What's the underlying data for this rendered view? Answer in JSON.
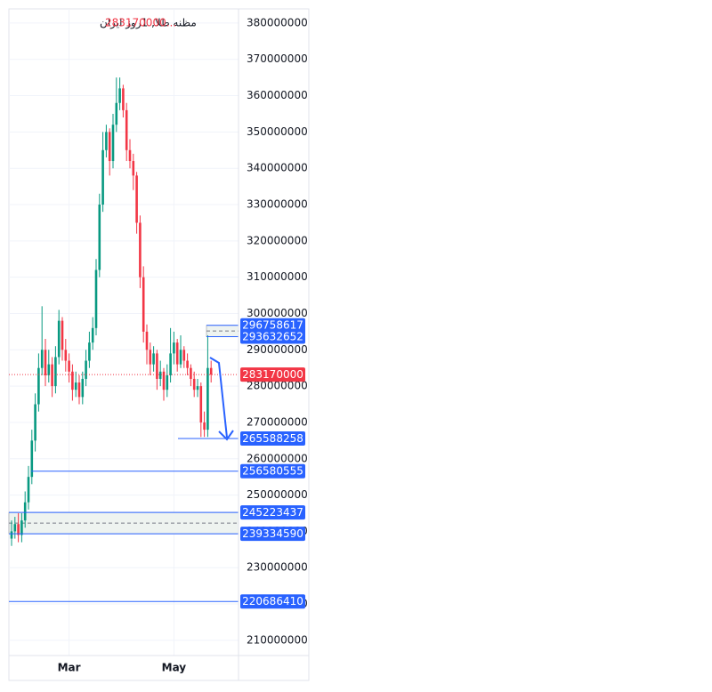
{
  "chart_data": {
    "type": "candlestick",
    "title": "مظنه طلا, 1روز ایران",
    "last_price_label": "283170000...",
    "categories": [
      null,
      null,
      null,
      null,
      null,
      null,
      null,
      null,
      null,
      null,
      null,
      null,
      null,
      null,
      null,
      null,
      null,
      "Mar",
      null,
      null,
      null,
      null,
      null,
      null,
      null,
      null,
      null,
      null,
      null,
      null,
      null,
      null,
      null,
      null,
      null,
      null,
      null,
      null,
      null,
      null,
      null,
      null,
      null,
      null,
      null,
      null,
      null,
      null,
      "May",
      null,
      null,
      null,
      null,
      null,
      null,
      null,
      null,
      null,
      null,
      null
    ],
    "open": [
      238000000,
      240000000,
      242000000,
      239000000,
      243000000,
      248000000,
      255000000,
      265000000,
      275000000,
      285000000,
      290000000,
      283000000,
      286000000,
      280000000,
      288000000,
      298000000,
      290000000,
      287000000,
      284000000,
      279000000,
      281000000,
      277000000,
      282000000,
      287000000,
      292000000,
      296000000,
      312000000,
      330000000,
      345000000,
      350000000,
      342000000,
      352000000,
      358000000,
      362000000,
      356000000,
      345000000,
      342000000,
      338000000,
      325000000,
      310000000,
      295000000,
      290000000,
      286000000,
      289000000,
      282000000,
      284000000,
      279000000,
      283000000,
      289000000,
      292000000,
      286000000,
      290000000,
      287000000,
      285000000,
      282000000,
      279000000,
      280000000,
      270000000,
      268000000,
      285000000
    ],
    "high": [
      243000000,
      244000000,
      245000000,
      245000000,
      251000000,
      258000000,
      268000000,
      278000000,
      289000000,
      302000000,
      293000000,
      290000000,
      288000000,
      291000000,
      301000000,
      299000000,
      293000000,
      289000000,
      286000000,
      284000000,
      283000000,
      284000000,
      290000000,
      295000000,
      299000000,
      315000000,
      333000000,
      350000000,
      352000000,
      351000000,
      355000000,
      365000000,
      365000000,
      363000000,
      358000000,
      348000000,
      344000000,
      339000000,
      327000000,
      313000000,
      297000000,
      292000000,
      291000000,
      290000000,
      287000000,
      285000000,
      286000000,
      296000000,
      295000000,
      293000000,
      294000000,
      291000000,
      289000000,
      286000000,
      284000000,
      282000000,
      281000000,
      273000000,
      294000000,
      287000000
    ],
    "low": [
      236000000,
      238000000,
      237000000,
      237000000,
      241000000,
      246000000,
      253000000,
      262000000,
      273000000,
      283000000,
      280000000,
      281000000,
      277000000,
      278000000,
      286000000,
      287000000,
      284000000,
      281000000,
      276000000,
      277000000,
      275000000,
      275000000,
      280000000,
      285000000,
      290000000,
      294000000,
      310000000,
      328000000,
      343000000,
      338000000,
      340000000,
      350000000,
      356000000,
      354000000,
      342000000,
      340000000,
      334000000,
      322000000,
      307000000,
      292000000,
      286000000,
      283000000,
      284000000,
      279000000,
      280000000,
      276000000,
      277000000,
      281000000,
      286000000,
      284000000,
      285000000,
      285000000,
      283000000,
      280000000,
      277000000,
      277000000,
      266000000,
      266000000,
      266000000,
      281000000
    ],
    "close": [
      240000000,
      242000000,
      239000000,
      243000000,
      248000000,
      255000000,
      265000000,
      275000000,
      285000000,
      290000000,
      283000000,
      286000000,
      280000000,
      288000000,
      298000000,
      290000000,
      287000000,
      284000000,
      279000000,
      281000000,
      277000000,
      282000000,
      287000000,
      292000000,
      296000000,
      312000000,
      330000000,
      345000000,
      350000000,
      342000000,
      352000000,
      358000000,
      362000000,
      356000000,
      345000000,
      342000000,
      338000000,
      325000000,
      310000000,
      295000000,
      290000000,
      286000000,
      289000000,
      282000000,
      284000000,
      279000000,
      283000000,
      289000000,
      292000000,
      286000000,
      290000000,
      287000000,
      285000000,
      282000000,
      279000000,
      280000000,
      270000000,
      268000000,
      285000000,
      283170000
    ],
    "up_color": "#089981",
    "down_color": "#f23645",
    "ylim": [
      205800000,
      383900000
    ],
    "yticks": [
      210000000,
      220000000,
      230000000,
      240000000,
      250000000,
      260000000,
      270000000,
      280000000,
      290000000,
      300000000,
      310000000,
      320000000,
      330000000,
      340000000,
      350000000,
      360000000,
      370000000,
      380000000
    ],
    "grid": true,
    "price_lines": [
      {
        "value": 296758617,
        "color": "#2962ff"
      },
      {
        "value": 293632652,
        "color": "#2962ff"
      },
      {
        "value": 283170000,
        "color": "#f23645"
      },
      {
        "value": 265588258,
        "color": "#2962ff"
      },
      {
        "value": 256580555,
        "color": "#2962ff"
      },
      {
        "value": 245223437,
        "color": "#2962ff"
      },
      {
        "value": 239334590,
        "color": "#2962ff"
      },
      {
        "value": 220686410,
        "color": "#2962ff"
      }
    ]
  }
}
